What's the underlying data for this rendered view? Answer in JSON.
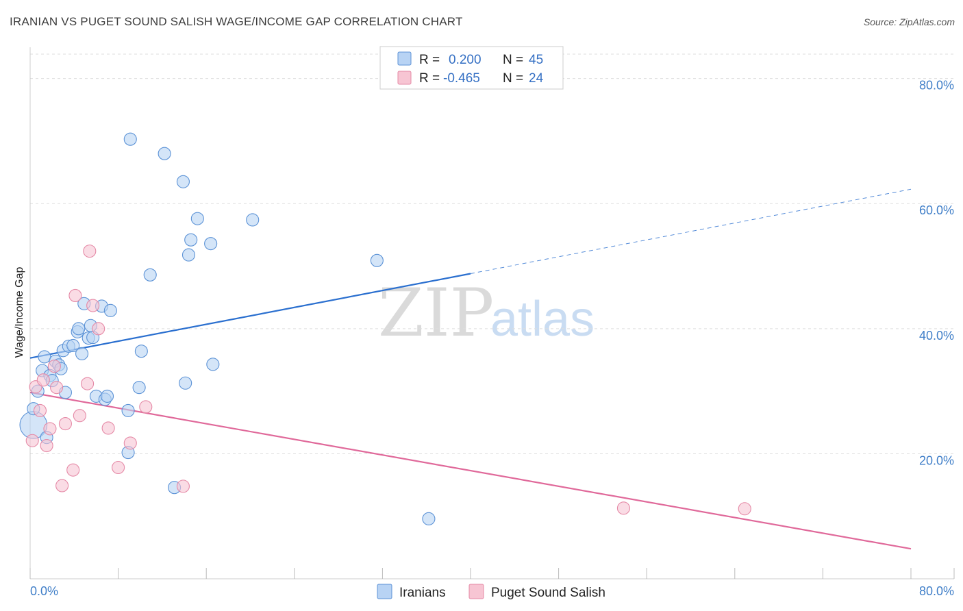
{
  "title": "IRANIAN VS PUGET SOUND SALISH WAGE/INCOME GAP CORRELATION CHART",
  "source": "Source: ZipAtlas.com",
  "watermark": {
    "zip": "ZIP",
    "atlas": "atlas"
  },
  "colors": {
    "iranians_fill": "#b8d3f4",
    "iranians_stroke": "#5b92d6",
    "iranians_line": "#2a6fcf",
    "salish_fill": "#f7c5d3",
    "salish_stroke": "#e589a6",
    "salish_line": "#e0699a",
    "grid": "#dddddd",
    "axis_text": "#3f7ec8"
  },
  "legend_top": {
    "row1": {
      "r_label": "R =",
      "r_value": "0.200",
      "n_label": "N =",
      "n_value": "45"
    },
    "row2": {
      "r_label": "R =",
      "r_value": "-0.465",
      "n_label": "N =",
      "n_value": "24"
    }
  },
  "legend_bottom": {
    "series1": "Iranians",
    "series2": "Puget Sound Salish"
  },
  "chart_data": {
    "type": "scatter",
    "title": "IRANIAN VS PUGET SOUND SALISH WAGE/INCOME GAP CORRELATION CHART",
    "xlabel": "",
    "ylabel": "Wage/Income Gap",
    "xlim": [
      0,
      80
    ],
    "ylim": [
      0,
      85
    ],
    "x_tick_labels": {
      "min": "0.0%",
      "max": "80.0%"
    },
    "y_ticks": [
      20,
      40,
      60,
      80
    ],
    "y_tick_labels": [
      "20.0%",
      "40.0%",
      "60.0%",
      "80.0%"
    ],
    "grid": true,
    "series": [
      {
        "name": "Iranians",
        "r": 0.2,
        "n": 45,
        "trend": {
          "x0": 0,
          "y0": 35.3,
          "x1": 40,
          "y1": 48.8,
          "dashed_to_x": 80,
          "dashed_to_y": 62.3
        },
        "points": [
          [
            0.3,
            24.6,
            2.2
          ],
          [
            0.3,
            27.2,
            1
          ],
          [
            0.7,
            30.0,
            1
          ],
          [
            1.1,
            33.3,
            1
          ],
          [
            1.3,
            35.5,
            1
          ],
          [
            1.5,
            22.6,
            1
          ],
          [
            1.8,
            32.5,
            1
          ],
          [
            2.0,
            31.7,
            1
          ],
          [
            2.3,
            34.8,
            1
          ],
          [
            2.6,
            34.2,
            1
          ],
          [
            2.8,
            33.6,
            1
          ],
          [
            3.0,
            36.5,
            1
          ],
          [
            3.2,
            29.8,
            1
          ],
          [
            3.5,
            37.2,
            1
          ],
          [
            3.9,
            37.3,
            1
          ],
          [
            4.3,
            39.5,
            1
          ],
          [
            4.4,
            40.0,
            1
          ],
          [
            4.7,
            36.0,
            1
          ],
          [
            4.9,
            44.0,
            1
          ],
          [
            5.3,
            38.5,
            1
          ],
          [
            5.5,
            40.5,
            1
          ],
          [
            5.7,
            38.6,
            1
          ],
          [
            6.0,
            29.2,
            1
          ],
          [
            6.5,
            43.6,
            1
          ],
          [
            6.8,
            28.7,
            1
          ],
          [
            7.0,
            29.2,
            1
          ],
          [
            7.3,
            42.9,
            1
          ],
          [
            8.9,
            20.2,
            1
          ],
          [
            8.9,
            26.9,
            1
          ],
          [
            9.1,
            70.3,
            1
          ],
          [
            9.9,
            30.6,
            1
          ],
          [
            10.1,
            36.4,
            1
          ],
          [
            10.9,
            48.6,
            1
          ],
          [
            12.2,
            68.0,
            1
          ],
          [
            13.1,
            14.6,
            1
          ],
          [
            13.9,
            63.5,
            1
          ],
          [
            14.1,
            31.3,
            1
          ],
          [
            14.4,
            51.8,
            1
          ],
          [
            14.6,
            54.2,
            1
          ],
          [
            15.2,
            57.6,
            1
          ],
          [
            16.4,
            53.6,
            1
          ],
          [
            16.6,
            34.3,
            1
          ],
          [
            20.2,
            57.4,
            1
          ],
          [
            31.5,
            50.9,
            1
          ],
          [
            36.2,
            9.6,
            1
          ]
        ]
      },
      {
        "name": "Puget Sound Salish",
        "r": -0.465,
        "n": 24,
        "trend": {
          "x0": 0,
          "y0": 29.8,
          "x1": 80,
          "y1": 4.8
        },
        "points": [
          [
            0.2,
            22.1,
            1
          ],
          [
            0.5,
            30.7,
            1
          ],
          [
            0.9,
            26.9,
            1
          ],
          [
            1.2,
            31.8,
            1
          ],
          [
            1.5,
            21.3,
            1
          ],
          [
            1.8,
            24.0,
            1
          ],
          [
            2.2,
            34.0,
            1
          ],
          [
            2.4,
            30.6,
            1
          ],
          [
            2.9,
            14.9,
            1
          ],
          [
            3.2,
            24.8,
            1
          ],
          [
            3.9,
            17.4,
            1
          ],
          [
            4.1,
            45.3,
            1
          ],
          [
            4.5,
            26.1,
            1
          ],
          [
            5.2,
            31.2,
            1
          ],
          [
            5.4,
            52.4,
            1
          ],
          [
            5.7,
            43.7,
            1
          ],
          [
            6.2,
            40.0,
            1
          ],
          [
            7.1,
            24.1,
            1
          ],
          [
            8.0,
            17.8,
            1
          ],
          [
            9.1,
            21.7,
            1
          ],
          [
            10.5,
            27.5,
            1
          ],
          [
            13.9,
            14.8,
            1
          ],
          [
            53.9,
            11.3,
            1
          ],
          [
            64.9,
            11.2,
            1
          ]
        ]
      }
    ]
  }
}
